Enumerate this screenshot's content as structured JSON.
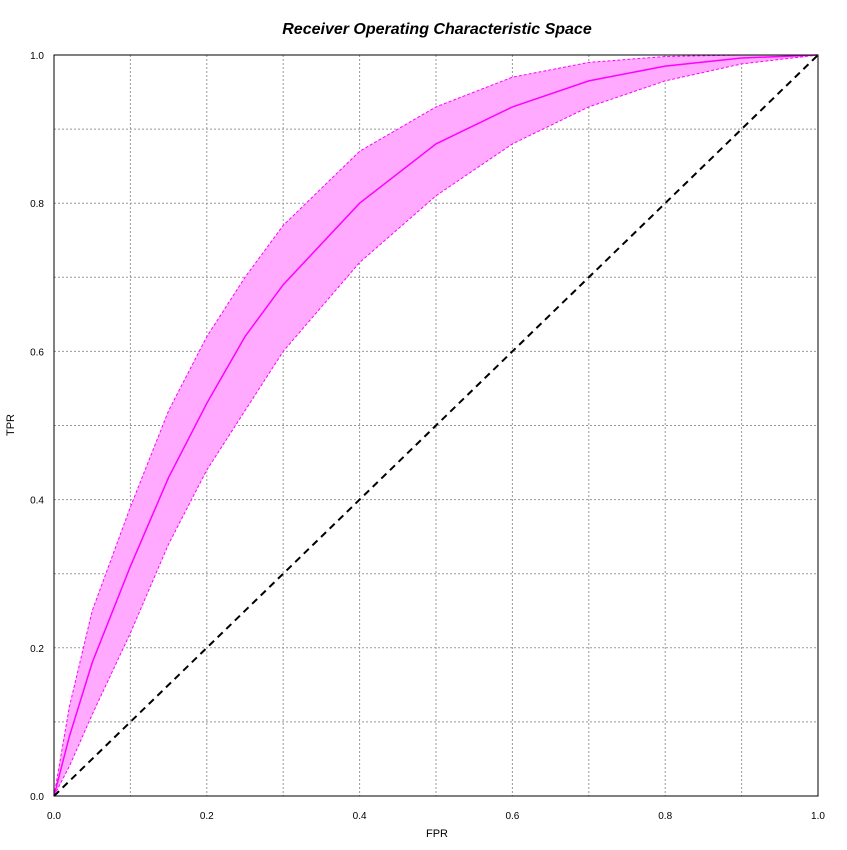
{
  "chart_data": {
    "type": "line",
    "title": "Receiver Operating Characteristic Space",
    "xlabel": "FPR",
    "ylabel": "TPR",
    "xlim": [
      0,
      1
    ],
    "ylim": [
      0,
      1
    ],
    "x_ticks": [
      "0.0",
      "0.2",
      "0.4",
      "0.6",
      "0.8",
      "1.0"
    ],
    "y_ticks": [
      "0.0",
      "0.2",
      "0.4",
      "0.6",
      "0.8",
      "1.0"
    ],
    "grid": true,
    "colors": {
      "curve": "#ff00ff",
      "band": "#ffaaff",
      "diagonal": "#000000"
    },
    "series": [
      {
        "x": [
          0,
          0.02,
          0.05,
          0.1,
          0.15,
          0.2,
          0.25,
          0.3,
          0.4,
          0.5,
          0.6,
          0.7,
          0.8,
          0.9,
          1.0
        ],
        "y": [
          0,
          0.08,
          0.18,
          0.31,
          0.43,
          0.53,
          0.62,
          0.69,
          0.8,
          0.88,
          0.93,
          0.965,
          0.985,
          0.996,
          1.0
        ]
      },
      {
        "x": [
          0,
          0.02,
          0.05,
          0.1,
          0.15,
          0.2,
          0.25,
          0.3,
          0.4,
          0.5,
          0.6,
          0.7,
          0.8,
          0.9,
          1.0
        ],
        "y": [
          0,
          0.12,
          0.25,
          0.39,
          0.52,
          0.62,
          0.7,
          0.77,
          0.87,
          0.93,
          0.97,
          0.99,
          0.998,
          1.0,
          1.0
        ]
      },
      {
        "x": [
          0,
          0.02,
          0.05,
          0.1,
          0.15,
          0.2,
          0.25,
          0.3,
          0.4,
          0.5,
          0.6,
          0.7,
          0.8,
          0.9,
          1.0
        ],
        "y": [
          0,
          0.04,
          0.11,
          0.22,
          0.34,
          0.44,
          0.52,
          0.6,
          0.72,
          0.81,
          0.88,
          0.93,
          0.965,
          0.988,
          1.0
        ]
      },
      {
        "x": [
          0,
          1
        ],
        "y": [
          0,
          1
        ]
      }
    ]
  }
}
